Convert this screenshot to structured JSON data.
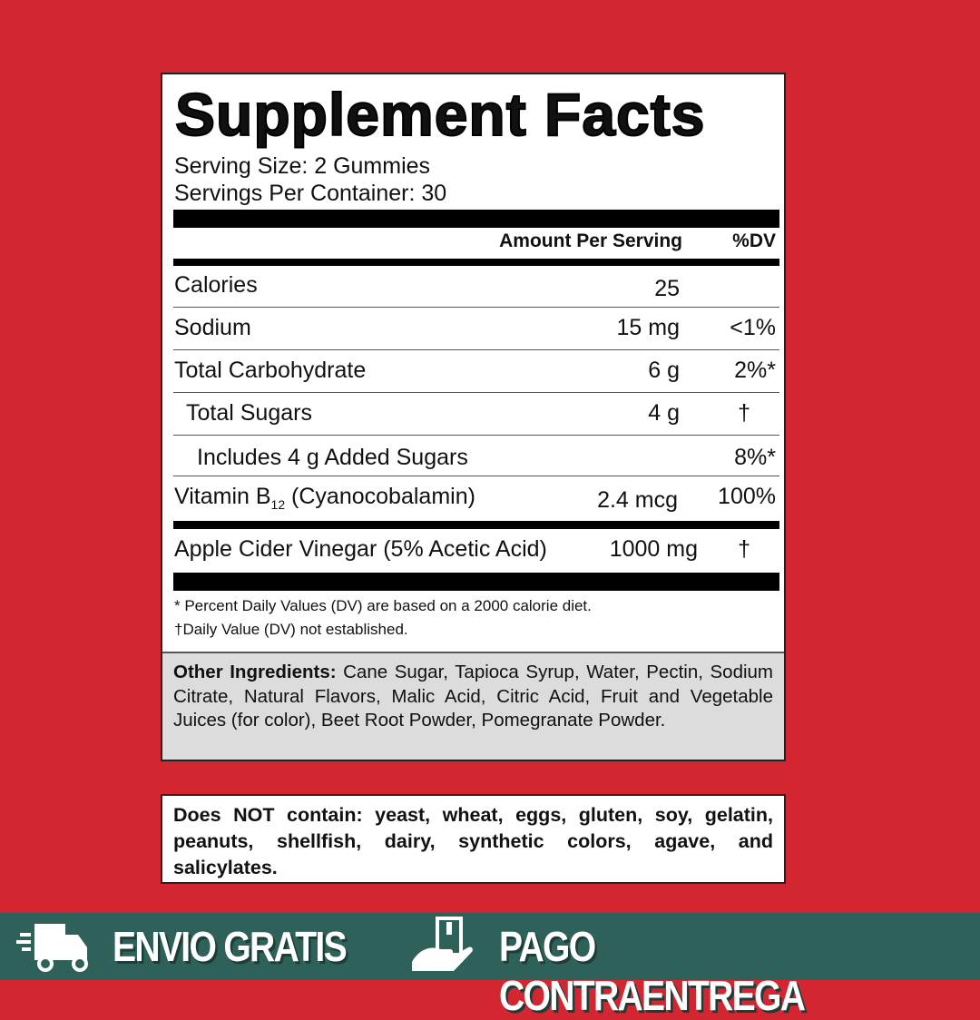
{
  "title": "Supplement Facts",
  "serving_size": "Serving Size: 2 Gummies",
  "servings_per_container": "Servings Per Container: 30",
  "header": {
    "amount": "Amount Per Serving",
    "dv": "%DV"
  },
  "rows": [
    {
      "name": "Calories",
      "amount": "25",
      "dv": ""
    },
    {
      "name": "Sodium",
      "amount": "15 mg",
      "dv": "<1%"
    },
    {
      "name": "Total Carbohydrate",
      "amount": "6 g",
      "dv": "2%*"
    },
    {
      "name": "Total Sugars",
      "amount": "4 g",
      "dv": "†"
    },
    {
      "name": "Includes 4 g Added Sugars",
      "amount": "",
      "dv": "8%*"
    },
    {
      "name": "Vitamin B",
      "sub": "12",
      "name2": " (Cyanocobalamin)",
      "amount": "2.4 mcg",
      "dv": "100%"
    },
    {
      "name": "Apple Cider Vinegar (5% Acetic Acid)",
      "amount": "1000 mg",
      "dv": "†"
    }
  ],
  "footnotes": [
    "* Percent Daily Values (DV) are based on a 2000 calorie diet.",
    "†Daily Value (DV) not established."
  ],
  "other_ingredients": {
    "label": "Other Ingredients:",
    "text": " Cane Sugar, Tapioca Syrup, Water, Pectin, Sodium Citrate, Natural Flavors, Malic Acid, Citric Acid, Fruit and Vegetable Juices (for color), Beet Root Powder, Pomegranate Powder."
  },
  "does_not_contain": "Does NOT contain: yeast, wheat, eggs, gluten, soy, gelatin, peanuts, shellfish, dairy, synthetic colors, agave, and salicylates.",
  "banner": {
    "shipping": "ENVIO GRATIS",
    "payment": "PAGO CONTRAENTREGA",
    "icons": [
      "truck-icon",
      "hand-package-icon"
    ]
  },
  "colors": {
    "background": "#d32630",
    "banner": "#2e6159"
  }
}
